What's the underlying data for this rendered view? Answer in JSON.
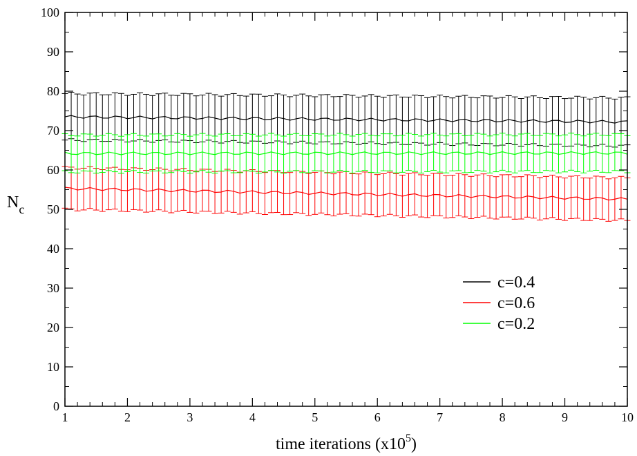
{
  "chart_data": {
    "type": "line",
    "title": "",
    "xlabel": "time iterations (x10",
    "xlabel_sup": "5",
    "xlabel_close": ")",
    "ylabel": "N",
    "ylabel_sub": "c",
    "xlim": [
      1,
      10
    ],
    "ylim": [
      0,
      100
    ],
    "x_ticks": [
      "1",
      "2",
      "3",
      "4",
      "5",
      "6",
      "7",
      "8",
      "9",
      "10"
    ],
    "y_ticks": [
      "0",
      "10",
      "20",
      "30",
      "40",
      "50",
      "60",
      "70",
      "80",
      "90",
      "100"
    ],
    "grid": false,
    "legend_position": "lower-right",
    "x_samples": {
      "start": 1,
      "end": 10,
      "count": 91
    },
    "series": [
      {
        "name": "c=0.4",
        "color": "#000000",
        "mean_start": 73.5,
        "mean_end": 72.2,
        "err_start": 5.9,
        "err_end": 6.1
      },
      {
        "name": "c=0.6",
        "color": "#ff0000",
        "mean_start": 55.3,
        "mean_end": 52.6,
        "err_start": 5.3,
        "err_end": 5.4
      },
      {
        "name": "c=0.2",
        "color": "#00ff00",
        "mean_start": 64.2,
        "mean_end": 64.3,
        "err_start": 4.7,
        "err_end": 4.7
      }
    ]
  }
}
